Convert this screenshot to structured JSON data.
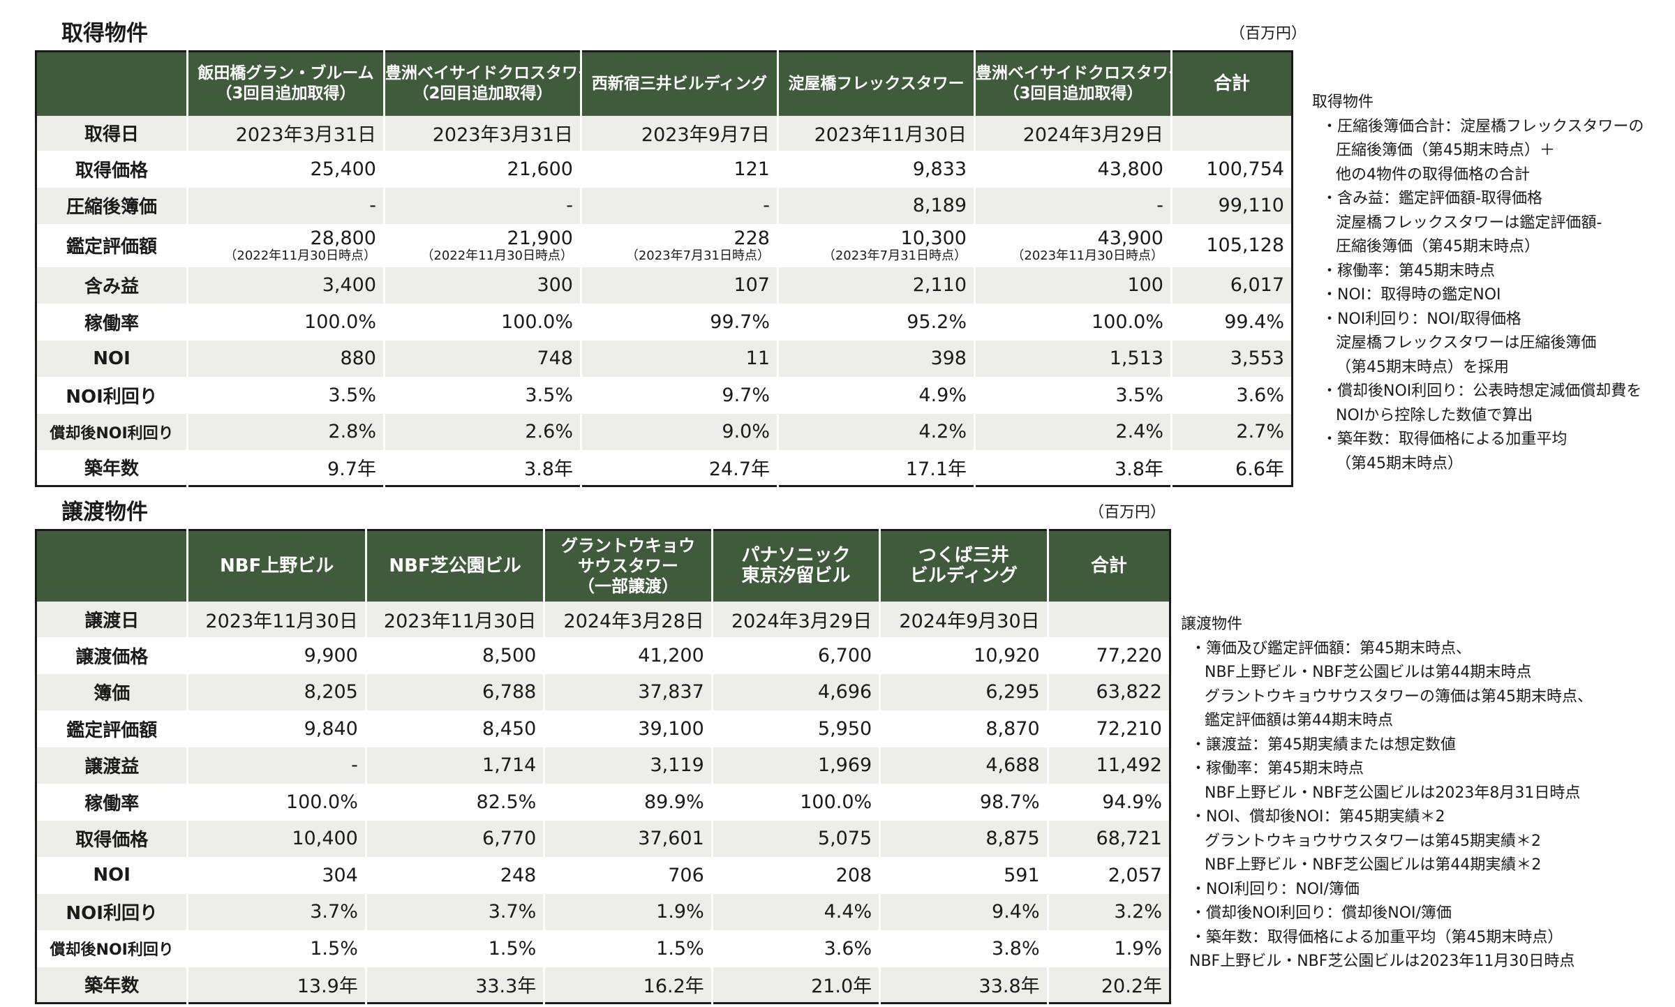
{
  "acquired": {
    "title": "取得物件",
    "unit": "（百万円）",
    "headers": [
      {
        "line1": "飯田橋グラン・ブルーム",
        "line2": "（3回目追加取得）"
      },
      {
        "line1": "豊洲ベイサイドクロスタワー",
        "line2": "（2回目追加取得）"
      },
      {
        "line1": "西新宿三井ビルディング",
        "line2": ""
      },
      {
        "line1": "淀屋橋フレックスタワー",
        "line2": ""
      },
      {
        "line1": "豊洲ベイサイドクロスタワー",
        "line2": "（3回目追加取得）"
      },
      {
        "line1": "合計",
        "line2": ""
      }
    ],
    "rows": [
      {
        "label": "取得日",
        "cells": [
          {
            "v": "2023年3月31日"
          },
          {
            "v": "2023年3月31日"
          },
          {
            "v": "2023年9月7日"
          },
          {
            "v": "2023年11月30日"
          },
          {
            "v": "2024年3月29日"
          },
          {
            "v": ""
          }
        ]
      },
      {
        "label": "取得価格",
        "cells": [
          {
            "v": "25,400"
          },
          {
            "v": "21,600"
          },
          {
            "v": "121"
          },
          {
            "v": "9,833"
          },
          {
            "v": "43,800"
          },
          {
            "v": "100,754"
          }
        ]
      },
      {
        "label": "圧縮後簿価",
        "cells": [
          {
            "v": "-"
          },
          {
            "v": "-"
          },
          {
            "v": "-"
          },
          {
            "v": "8,189"
          },
          {
            "v": "-"
          },
          {
            "v": "99,110"
          }
        ]
      },
      {
        "label": "鑑定評価額",
        "cells": [
          {
            "v": "28,800",
            "s": "（2022年11月30日時点）"
          },
          {
            "v": "21,900",
            "s": "（2022年11月30日時点）"
          },
          {
            "v": "228",
            "s": "（2023年7月31日時点）"
          },
          {
            "v": "10,300",
            "s": "（2023年7月31日時点）"
          },
          {
            "v": "43,900",
            "s": "（2023年11月30日時点）"
          },
          {
            "v": "105,128"
          }
        ]
      },
      {
        "label": "含み益",
        "cells": [
          {
            "v": "3,400"
          },
          {
            "v": "300"
          },
          {
            "v": "107"
          },
          {
            "v": "2,110"
          },
          {
            "v": "100"
          },
          {
            "v": "6,017"
          }
        ]
      },
      {
        "label": "稼働率",
        "cells": [
          {
            "v": "100.0%"
          },
          {
            "v": "100.0%"
          },
          {
            "v": "99.7%"
          },
          {
            "v": "95.2%"
          },
          {
            "v": "100.0%"
          },
          {
            "v": "99.4%"
          }
        ]
      },
      {
        "label": "NOI",
        "cells": [
          {
            "v": "880"
          },
          {
            "v": "748"
          },
          {
            "v": "11"
          },
          {
            "v": "398"
          },
          {
            "v": "1,513"
          },
          {
            "v": "3,553"
          }
        ]
      },
      {
        "label": "NOI利回り",
        "cells": [
          {
            "v": "3.5%"
          },
          {
            "v": "3.5%"
          },
          {
            "v": "9.7%"
          },
          {
            "v": "4.9%"
          },
          {
            "v": "3.5%"
          },
          {
            "v": "3.6%"
          }
        ]
      },
      {
        "label": "償却後NOI利回り",
        "cells": [
          {
            "v": "2.8%"
          },
          {
            "v": "2.6%"
          },
          {
            "v": "9.0%"
          },
          {
            "v": "4.2%"
          },
          {
            "v": "2.4%"
          },
          {
            "v": "2.7%"
          }
        ]
      },
      {
        "label": "築年数",
        "cells": [
          {
            "v": "9.7年"
          },
          {
            "v": "3.8年"
          },
          {
            "v": "24.7年"
          },
          {
            "v": "17.1年"
          },
          {
            "v": "3.8年"
          },
          {
            "v": "6.6年"
          }
        ]
      }
    ],
    "notes": {
      "title": "取得物件",
      "lines": [
        "・圧縮後簿価合計：淀屋橋フレックスタワーの",
        "圧縮後簿価（第45期末時点）＋",
        "他の4物件の取得価格の合計",
        "・含み益：鑑定評価額-取得価格",
        "淀屋橋フレックスタワーは鑑定評価額-",
        "圧縮後簿価（第45期末時点）",
        "・稼働率：第45期末時点",
        "・NOI：取得時の鑑定NOI",
        "・NOI利回り：NOI/取得価格",
        "淀屋橋フレックスタワーは圧縮後簿価",
        "（第45期末時点）を採用",
        "・償却後NOI利回り：公表時想定減価償却費を",
        "NOIから控除した数値で算出",
        "・築年数：取得価格による加重平均",
        "（第45期末時点）"
      ]
    }
  },
  "transferred": {
    "title": "譲渡物件",
    "unit": "（百万円）",
    "headers": [
      {
        "line1": "NBF上野ビル",
        "line2": "",
        "line3": ""
      },
      {
        "line1": "NBF芝公園ビル",
        "line2": "",
        "line3": ""
      },
      {
        "line1": "グラントウキョウ",
        "line2": "サウスタワー",
        "line3": "（一部譲渡）"
      },
      {
        "line1": "パナソニック",
        "line2": "東京汐留ビル",
        "line3": ""
      },
      {
        "line1": "つくば三井",
        "line2": "ビルディング",
        "line3": ""
      },
      {
        "line1": "合計",
        "line2": "",
        "line3": ""
      }
    ],
    "rows": [
      {
        "label": "譲渡日",
        "cells": [
          "2023年11月30日",
          "2023年11月30日",
          "2024年3月28日",
          "2024年3月29日",
          "2024年9月30日",
          ""
        ]
      },
      {
        "label": "譲渡価格",
        "cells": [
          "9,900",
          "8,500",
          "41,200",
          "6,700",
          "10,920",
          "77,220"
        ]
      },
      {
        "label": "簿価",
        "cells": [
          "8,205",
          "6,788",
          "37,837",
          "4,696",
          "6,295",
          "63,822"
        ]
      },
      {
        "label": "鑑定評価額",
        "cells": [
          "9,840",
          "8,450",
          "39,100",
          "5,950",
          "8,870",
          "72,210"
        ]
      },
      {
        "label": "譲渡益",
        "cells": [
          "-",
          "1,714",
          "3,119",
          "1,969",
          "4,688",
          "11,492"
        ]
      },
      {
        "label": "稼働率",
        "cells": [
          "100.0%",
          "82.5%",
          "89.9%",
          "100.0%",
          "98.7%",
          "94.9%"
        ]
      },
      {
        "label": "取得価格",
        "cells": [
          "10,400",
          "6,770",
          "37,601",
          "5,075",
          "8,875",
          "68,721"
        ]
      },
      {
        "label": "NOI",
        "cells": [
          "304",
          "248",
          "706",
          "208",
          "591",
          "2,057"
        ]
      },
      {
        "label": "NOI利回り",
        "cells": [
          "3.7%",
          "3.7%",
          "1.9%",
          "4.4%",
          "9.4%",
          "3.2%"
        ]
      },
      {
        "label": "償却後NOI利回り",
        "cells": [
          "1.5%",
          "1.5%",
          "1.5%",
          "3.6%",
          "3.8%",
          "1.9%"
        ]
      },
      {
        "label": "築年数",
        "cells": [
          "13.9年",
          "33.3年",
          "16.2年",
          "21.0年",
          "33.8年",
          "20.2年"
        ]
      }
    ],
    "notes": {
      "title": "譲渡物件",
      "lines": [
        "・簿価及び鑑定評価額：第45期末時点、",
        "NBF上野ビル・NBF芝公園ビルは第44期末時点",
        "グラントウキョウサウスタワーの簿価は第45期末時点、",
        "鑑定評価額は第44期末時点",
        "・譲渡益：第45期実績または想定数値",
        "・稼働率：第45期末時点",
        "NBF上野ビル・NBF芝公園ビルは2023年8月31日時点",
        "・NOI、償却後NOI：第45期実績＊2",
        "グラントウキョウサウスタワーは第45期実績＊2",
        "NBF上野ビル・NBF芝公園ビルは第44期実績＊2",
        "・NOI利回り：NOI/簿価",
        "・償却後NOI利回り：償却後NOI/簿価",
        "・築年数：取得価格による加重平均（第45期末時点）",
        "NBF上野ビル・NBF芝公園ビルは2023年11月30日時点"
      ]
    }
  }
}
